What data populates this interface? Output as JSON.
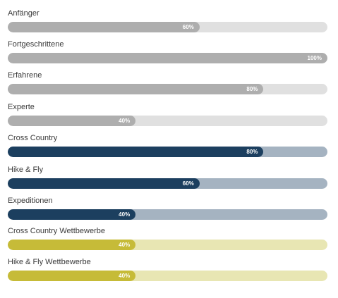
{
  "skills": [
    {
      "label": "Anfänger",
      "percent": 60,
      "value_text": "60%",
      "theme": "gray"
    },
    {
      "label": "Fortgeschrittene",
      "percent": 100,
      "value_text": "100%",
      "theme": "gray"
    },
    {
      "label": "Erfahrene",
      "percent": 80,
      "value_text": "80%",
      "theme": "gray"
    },
    {
      "label": "Experte",
      "percent": 40,
      "value_text": "40%",
      "theme": "gray"
    },
    {
      "label": "Cross Country",
      "percent": 80,
      "value_text": "80%",
      "theme": "navy"
    },
    {
      "label": "Hike & Fly",
      "percent": 60,
      "value_text": "60%",
      "theme": "navy"
    },
    {
      "label": "Expeditionen",
      "percent": 40,
      "value_text": "40%",
      "theme": "navy"
    },
    {
      "label": "Cross Country Wettbewerbe",
      "percent": 40,
      "value_text": "40%",
      "theme": "olive"
    },
    {
      "label": "Hike & Fly Wettbewerbe",
      "percent": 40,
      "value_text": "40%",
      "theme": "olive"
    }
  ],
  "colors": {
    "gray_fill": "#aeaeae",
    "gray_track": "#e0e0e0",
    "navy_fill": "#1c3f5f",
    "navy_track": "#a5b3c1",
    "olive_fill": "#c6bb38",
    "olive_track": "#e8e6b3",
    "label_text": "#3a3a3a",
    "value_text": "#ffffff"
  }
}
